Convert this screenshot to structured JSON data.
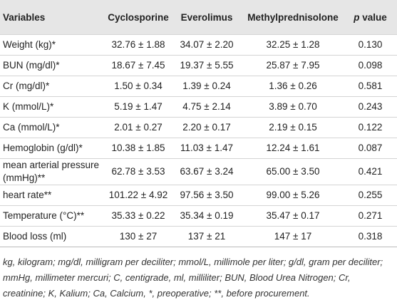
{
  "table": {
    "headers": [
      "Variables",
      "Cyclosporine",
      "Everolimus",
      "Methylprednisolone",
      "p value"
    ],
    "rows": [
      [
        "Weight (kg)*",
        "32.76 ± 1.88",
        "34.07 ± 2.20",
        "32.25 ± 1.28",
        "0.130"
      ],
      [
        "BUN (mg/dl)*",
        "18.67 ± 7.45",
        "19.37 ± 5.55",
        "25.87 ± 7.95",
        "0.098"
      ],
      [
        "Cr (mg/dl)*",
        "1.50 ± 0.34",
        "1.39 ± 0.24",
        "1.36 ± 0.26",
        "0.581"
      ],
      [
        "K (mmol/L)*",
        "5.19 ± 1.47",
        "4.75 ± 2.14",
        "3.89 ± 0.70",
        "0.243"
      ],
      [
        "Ca (mmol/L)*",
        "2.01 ± 0.27",
        "2.20 ± 0.17",
        "2.19 ± 0.15",
        "0.122"
      ],
      [
        "Hemoglobin (g/dl)*",
        "10.38 ± 1.85",
        "11.03 ± 1.47",
        "12.24 ± 1.61",
        "0.087"
      ],
      [
        "mean arterial pressure (mmHg)**",
        "62.78 ± 3.53",
        "63.67 ± 3.24",
        "65.00 ± 3.50",
        "0.421"
      ],
      [
        "heart rate**",
        "101.22 ± 4.92",
        "97.56 ± 3.50",
        "99.00 ± 5.26",
        "0.255"
      ],
      [
        "Temperature (°C)**",
        "35.33 ± 0.22",
        "35.34 ± 0.19",
        "35.47 ± 0.17",
        "0.271"
      ],
      [
        "Blood loss (ml)",
        "130 ± 27",
        "137 ± 21",
        "147 ± 17",
        "0.318"
      ]
    ],
    "footnote": "kg, kilogram; mg/dl, milligram per deciliter; mmol/L, millimole per liter; g/dl, gram per deciliter; mmHg, millimeter mercuri; C, centigrade, ml, milliliter; BUN, Blood Urea Nitrogen; Cr, creatinine; K, Kalium; Ca, Calcium, *, preoperative; **, before procurement."
  }
}
